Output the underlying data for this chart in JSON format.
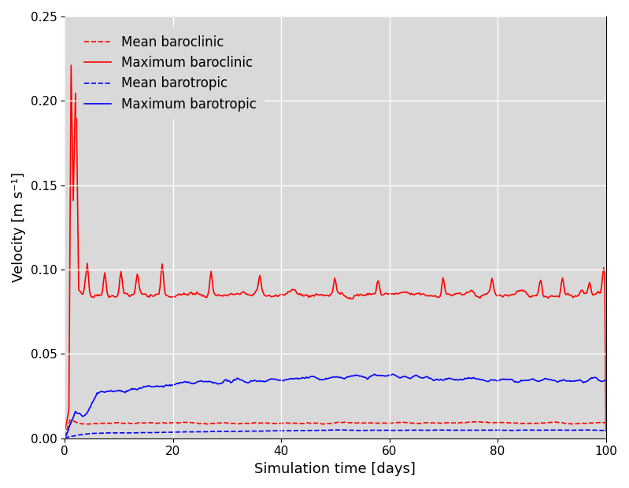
{
  "title": "",
  "xlabel": "Simulation time [days]",
  "ylabel": "Velocity [m s⁻¹]",
  "xlim": [
    0,
    100
  ],
  "ylim": [
    0,
    0.25
  ],
  "yticks": [
    0.0,
    0.05,
    0.1,
    0.15,
    0.2,
    0.25
  ],
  "xticks": [
    0,
    20,
    40,
    60,
    80,
    100
  ],
  "background_color": "#d9d9d9",
  "legend_labels": [
    "Mean baroclinic",
    "Maximum baroclinic",
    "Mean barotropic",
    "Maximum barotropic"
  ],
  "grid_color": "white",
  "line_width": 1.2,
  "legend_fontsize": 12,
  "axis_fontsize": 13,
  "tick_fontsize": 11
}
